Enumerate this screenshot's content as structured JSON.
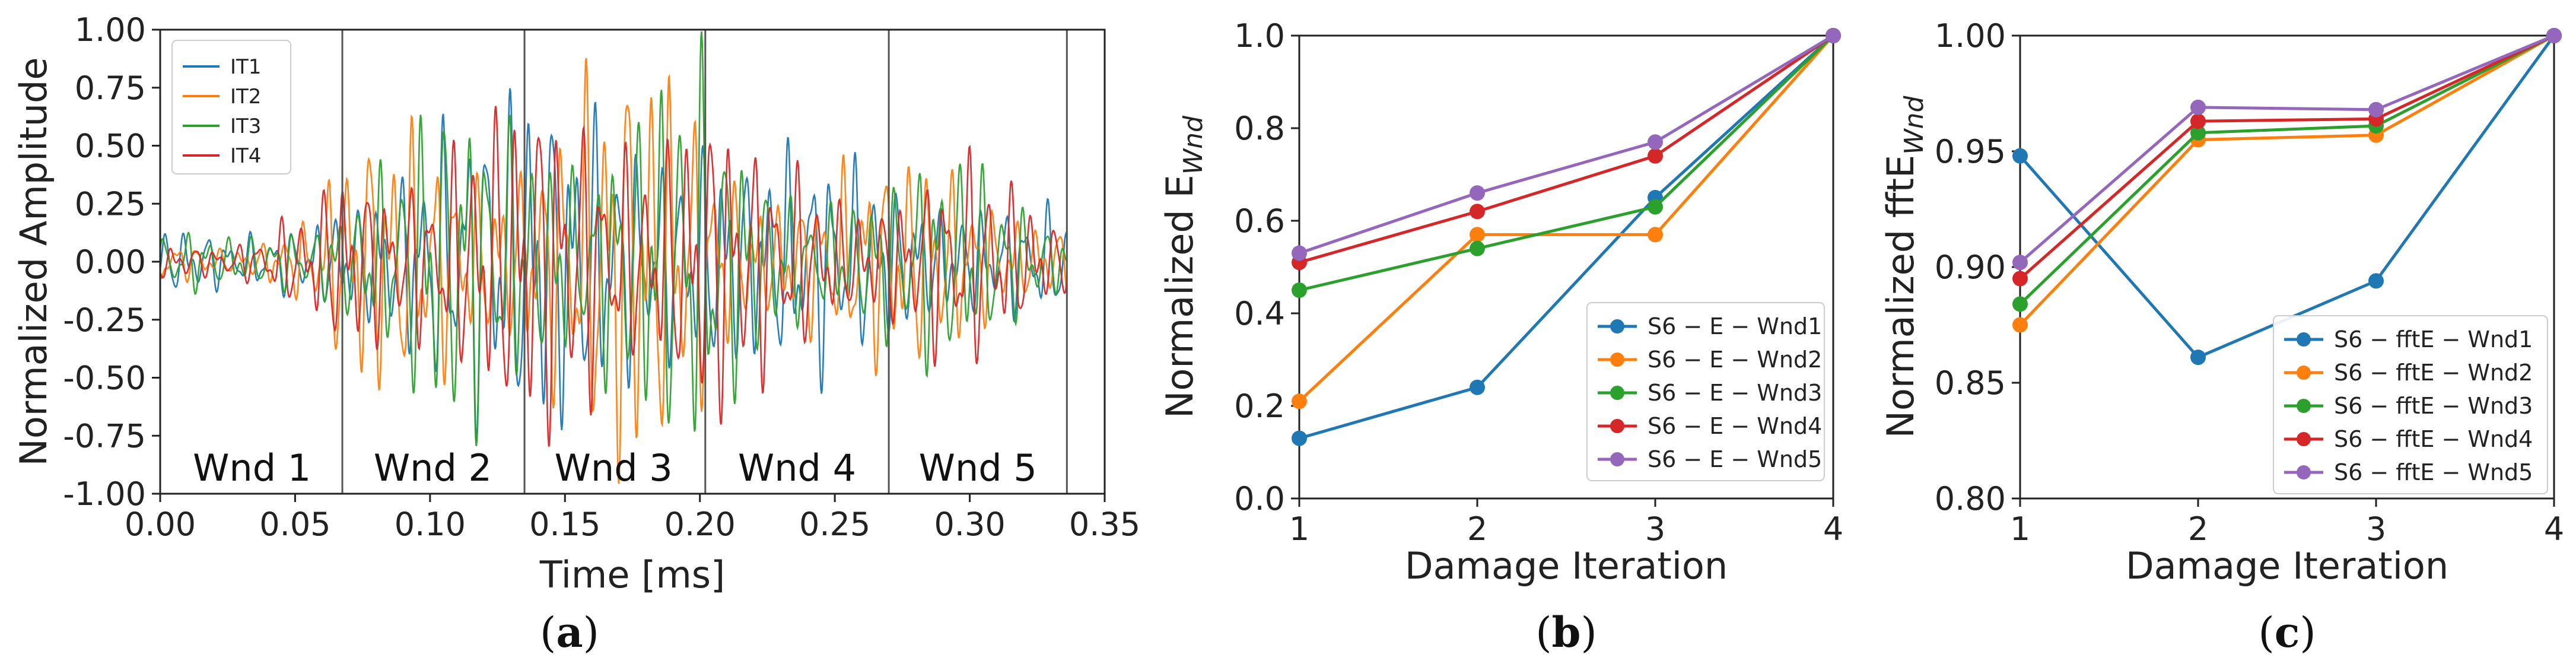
{
  "colors": {
    "blue": "#1f77b4",
    "orange": "#ff7f0e",
    "green": "#2ca02c",
    "red": "#d62728",
    "purple": "#9467bd"
  },
  "chart_data": [
    {
      "id": "a",
      "type": "line",
      "caption": "a",
      "xlabel": "Time [ms]",
      "ylabel": "Normalized Amplitude",
      "xlim": [
        0,
        0.35
      ],
      "ylim": [
        -1.0,
        1.0
      ],
      "xticks": [
        "0.00",
        "0.05",
        "0.10",
        "0.15",
        "0.20",
        "0.25",
        "0.30",
        "0.35"
      ],
      "yticks": [
        "-1.00",
        "-0.75",
        "-0.50",
        "-0.25",
        "0.00",
        "0.25",
        "0.50",
        "0.75",
        "1.00"
      ],
      "legend_position": "top-left",
      "window_boundaries_ms": [
        0.0675,
        0.135,
        0.202,
        0.27,
        0.336
      ],
      "window_labels": [
        {
          "text": "Wnd 1",
          "x": 0.034
        },
        {
          "text": "Wnd 2",
          "x": 0.101
        },
        {
          "text": "Wnd 3",
          "x": 0.168
        },
        {
          "text": "Wnd 4",
          "x": 0.236
        },
        {
          "text": "Wnd 5",
          "x": 0.303
        }
      ],
      "series": [
        {
          "name": "IT1",
          "color": "#1f77b4",
          "seed": 11
        },
        {
          "name": "IT2",
          "color": "#ff7f0e",
          "seed": 23
        },
        {
          "name": "IT3",
          "color": "#2ca02c",
          "seed": 37
        },
        {
          "name": "IT4",
          "color": "#d62728",
          "seed": 53
        }
      ],
      "envelope": {
        "t": [
          0.0,
          0.03,
          0.055,
          0.07,
          0.1,
          0.13,
          0.17,
          0.2,
          0.22,
          0.27,
          0.3,
          0.336
        ],
        "amp": [
          0.15,
          0.1,
          0.22,
          0.5,
          0.72,
          0.7,
          0.92,
          0.85,
          0.5,
          0.45,
          0.45,
          0.25
        ]
      }
    },
    {
      "id": "b",
      "type": "line",
      "caption": "b",
      "xlabel": "Damage Iteration",
      "ylabel": "Normalized E",
      "ylabel_sub": "Wnd",
      "x": [
        1,
        2,
        3,
        4
      ],
      "xlim": [
        1,
        4
      ],
      "ylim": [
        0.0,
        1.0
      ],
      "xticks": [
        "1",
        "2",
        "3",
        "4"
      ],
      "yticks": [
        "0.0",
        "0.2",
        "0.4",
        "0.6",
        "0.8",
        "1.0"
      ],
      "legend_position": "bottom-right",
      "series": [
        {
          "name": "S6 − E − Wnd1",
          "color": "#1f77b4",
          "values": [
            0.13,
            0.24,
            0.65,
            1.0
          ]
        },
        {
          "name": "S6 − E − Wnd2",
          "color": "#ff7f0e",
          "values": [
            0.21,
            0.57,
            0.57,
            1.0
          ]
        },
        {
          "name": "S6 − E − Wnd3",
          "color": "#2ca02c",
          "values": [
            0.45,
            0.54,
            0.63,
            1.0
          ]
        },
        {
          "name": "S6 − E − Wnd4",
          "color": "#d62728",
          "values": [
            0.51,
            0.62,
            0.74,
            1.0
          ]
        },
        {
          "name": "S6 − E − Wnd5",
          "color": "#9467bd",
          "values": [
            0.53,
            0.66,
            0.77,
            1.0
          ]
        }
      ]
    },
    {
      "id": "c",
      "type": "line",
      "caption": "c",
      "xlabel": "Damage Iteration",
      "ylabel": "Normalized fftE",
      "ylabel_sub": "Wnd",
      "x": [
        1,
        2,
        3,
        4
      ],
      "xlim": [
        1,
        4
      ],
      "ylim": [
        0.8,
        1.0
      ],
      "xticks": [
        "1",
        "2",
        "3",
        "4"
      ],
      "yticks": [
        "0.80",
        "0.85",
        "0.90",
        "0.95",
        "1.00"
      ],
      "legend_position": "bottom-right",
      "series": [
        {
          "name": "S6 − fftE − Wnd1",
          "color": "#1f77b4",
          "values": [
            0.948,
            0.861,
            0.894,
            1.0
          ]
        },
        {
          "name": "S6 − fftE − Wnd2",
          "color": "#ff7f0e",
          "values": [
            0.875,
            0.955,
            0.957,
            1.0
          ]
        },
        {
          "name": "S6 − fftE − Wnd3",
          "color": "#2ca02c",
          "values": [
            0.884,
            0.958,
            0.961,
            1.0
          ]
        },
        {
          "name": "S6 − fftE − Wnd4",
          "color": "#d62728",
          "values": [
            0.895,
            0.963,
            0.964,
            1.0
          ]
        },
        {
          "name": "S6 − fftE − Wnd5",
          "color": "#9467bd",
          "values": [
            0.902,
            0.969,
            0.968,
            1.0
          ]
        }
      ]
    }
  ]
}
